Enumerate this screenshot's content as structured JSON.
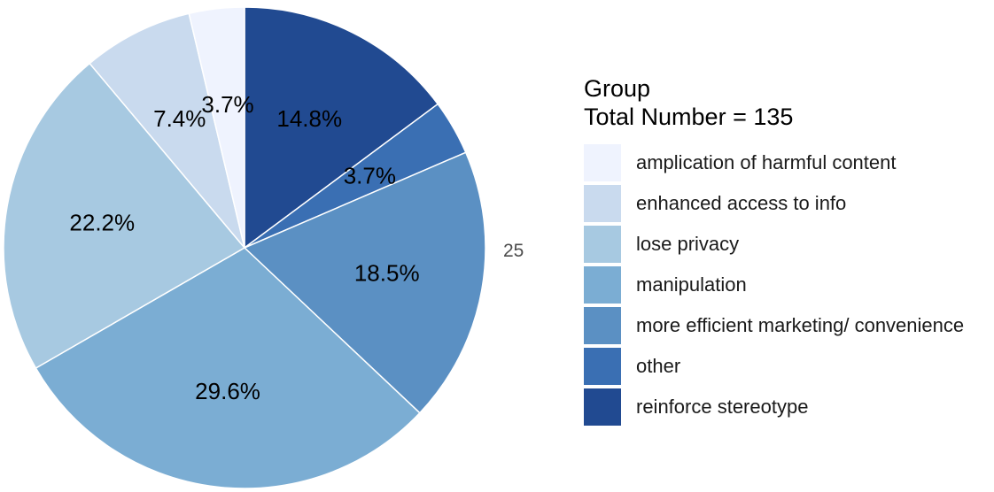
{
  "chart_data": {
    "type": "pie",
    "total": 135,
    "legend": {
      "title_line1": "Group",
      "title_line2": "Total Number = 135",
      "placement": "right"
    },
    "angle_tick_label": "25",
    "slices": [
      {
        "category": "reinforce stereotype",
        "count": 20,
        "label": "14.8%",
        "color": "#214a91"
      },
      {
        "category": "other",
        "count": 5,
        "label": "3.7%",
        "color": "#3a6fb3"
      },
      {
        "category": "more efficient marketing/ convenience",
        "count": 25,
        "label": "18.5%",
        "color": "#5b90c3"
      },
      {
        "category": "manipulation",
        "count": 40,
        "label": "29.6%",
        "color": "#7badd3"
      },
      {
        "category": "lose privacy",
        "count": 30,
        "label": "22.2%",
        "color": "#a7c9e1"
      },
      {
        "category": "enhanced access to info",
        "count": 10,
        "label": "7.4%",
        "color": "#c9daee"
      },
      {
        "category": "amplication of harmful content",
        "count": 5,
        "label": "3.7%",
        "color": "#eff3fe"
      }
    ],
    "legend_order": [
      "amplication of harmful content",
      "enhanced access to info",
      "lose privacy",
      "manipulation",
      "more efficient marketing/ convenience",
      "other",
      "reinforce stereotype"
    ]
  }
}
